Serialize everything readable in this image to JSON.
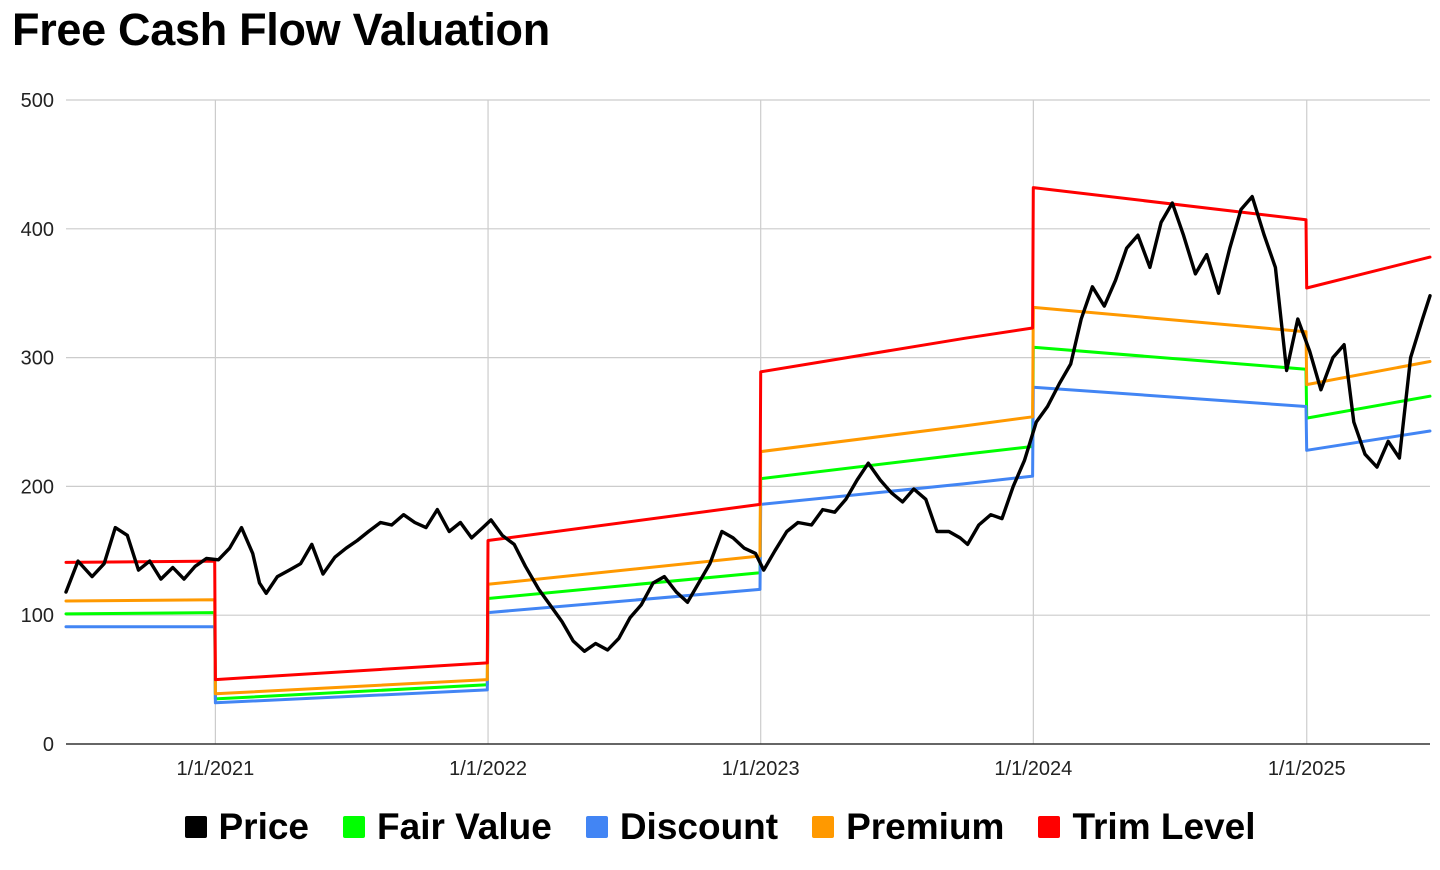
{
  "chart_data": {
    "type": "line",
    "title": "Free Cash Flow Valuation",
    "xlabel": "",
    "ylabel": "",
    "ylim": [
      0,
      500
    ],
    "xlim": [
      "2020-06-15",
      "2025-06-15"
    ],
    "yticks": [
      "0",
      "100",
      "200",
      "300",
      "400",
      "500"
    ],
    "xticks": [
      {
        "date": "2021-01-01",
        "label": "1/1/2021"
      },
      {
        "date": "2022-01-01",
        "label": "1/1/2022"
      },
      {
        "date": "2023-01-01",
        "label": "1/1/2023"
      },
      {
        "date": "2024-01-01",
        "label": "1/1/2024"
      },
      {
        "date": "2025-01-01",
        "label": "1/1/2025"
      }
    ],
    "grid": true,
    "legend": "bottom",
    "series": [
      {
        "name": "Price",
        "color": "#000000",
        "points": [
          [
            "2020-06-15",
            118
          ],
          [
            "2020-07-01",
            142
          ],
          [
            "2020-07-20",
            130
          ],
          [
            "2020-08-05",
            140
          ],
          [
            "2020-08-20",
            168
          ],
          [
            "2020-09-05",
            162
          ],
          [
            "2020-09-20",
            135
          ],
          [
            "2020-10-05",
            142
          ],
          [
            "2020-10-20",
            128
          ],
          [
            "2020-11-05",
            137
          ],
          [
            "2020-11-20",
            128
          ],
          [
            "2020-12-05",
            138
          ],
          [
            "2020-12-20",
            144
          ],
          [
            "2021-01-05",
            143
          ],
          [
            "2021-01-20",
            152
          ],
          [
            "2021-02-05",
            168
          ],
          [
            "2021-02-20",
            148
          ],
          [
            "2021-03-01",
            125
          ],
          [
            "2021-03-10",
            117
          ],
          [
            "2021-03-25",
            130
          ],
          [
            "2021-04-10",
            135
          ],
          [
            "2021-04-25",
            140
          ],
          [
            "2021-05-10",
            155
          ],
          [
            "2021-05-25",
            132
          ],
          [
            "2021-06-10",
            145
          ],
          [
            "2021-06-25",
            152
          ],
          [
            "2021-07-10",
            158
          ],
          [
            "2021-07-25",
            165
          ],
          [
            "2021-08-10",
            172
          ],
          [
            "2021-08-25",
            170
          ],
          [
            "2021-09-10",
            178
          ],
          [
            "2021-09-25",
            172
          ],
          [
            "2021-10-10",
            168
          ],
          [
            "2021-10-25",
            182
          ],
          [
            "2021-11-10",
            165
          ],
          [
            "2021-11-25",
            172
          ],
          [
            "2021-12-10",
            160
          ],
          [
            "2021-12-25",
            168
          ],
          [
            "2022-01-05",
            174
          ],
          [
            "2022-01-20",
            162
          ],
          [
            "2022-02-05",
            155
          ],
          [
            "2022-02-20",
            138
          ],
          [
            "2022-03-10",
            120
          ],
          [
            "2022-03-25",
            108
          ],
          [
            "2022-04-10",
            95
          ],
          [
            "2022-04-25",
            80
          ],
          [
            "2022-05-10",
            72
          ],
          [
            "2022-05-25",
            78
          ],
          [
            "2022-06-10",
            73
          ],
          [
            "2022-06-25",
            82
          ],
          [
            "2022-07-10",
            98
          ],
          [
            "2022-07-25",
            108
          ],
          [
            "2022-08-10",
            125
          ],
          [
            "2022-08-25",
            130
          ],
          [
            "2022-09-10",
            118
          ],
          [
            "2022-09-25",
            110
          ],
          [
            "2022-10-10",
            125
          ],
          [
            "2022-10-25",
            140
          ],
          [
            "2022-11-10",
            165
          ],
          [
            "2022-11-25",
            160
          ],
          [
            "2022-12-10",
            152
          ],
          [
            "2022-12-25",
            148
          ],
          [
            "2023-01-05",
            135
          ],
          [
            "2023-01-20",
            150
          ],
          [
            "2023-02-05",
            165
          ],
          [
            "2023-02-20",
            172
          ],
          [
            "2023-03-10",
            170
          ],
          [
            "2023-03-25",
            182
          ],
          [
            "2023-04-10",
            180
          ],
          [
            "2023-04-25",
            190
          ],
          [
            "2023-05-10",
            205
          ],
          [
            "2023-05-25",
            218
          ],
          [
            "2023-06-10",
            205
          ],
          [
            "2023-06-25",
            195
          ],
          [
            "2023-07-10",
            188
          ],
          [
            "2023-07-25",
            198
          ],
          [
            "2023-08-10",
            190
          ],
          [
            "2023-08-25",
            165
          ],
          [
            "2023-09-10",
            165
          ],
          [
            "2023-09-25",
            160
          ],
          [
            "2023-10-05",
            155
          ],
          [
            "2023-10-20",
            170
          ],
          [
            "2023-11-05",
            178
          ],
          [
            "2023-11-20",
            175
          ],
          [
            "2023-12-05",
            200
          ],
          [
            "2023-12-20",
            220
          ],
          [
            "2024-01-05",
            250
          ],
          [
            "2024-01-20",
            262
          ],
          [
            "2024-02-05",
            280
          ],
          [
            "2024-02-20",
            295
          ],
          [
            "2024-03-05",
            330
          ],
          [
            "2024-03-20",
            355
          ],
          [
            "2024-04-05",
            340
          ],
          [
            "2024-04-20",
            360
          ],
          [
            "2024-05-05",
            385
          ],
          [
            "2024-05-20",
            395
          ],
          [
            "2024-06-05",
            370
          ],
          [
            "2024-06-20",
            405
          ],
          [
            "2024-07-05",
            420
          ],
          [
            "2024-07-20",
            395
          ],
          [
            "2024-08-05",
            365
          ],
          [
            "2024-08-20",
            380
          ],
          [
            "2024-09-05",
            350
          ],
          [
            "2024-09-20",
            385
          ],
          [
            "2024-10-05",
            415
          ],
          [
            "2024-10-20",
            425
          ],
          [
            "2024-11-05",
            395
          ],
          [
            "2024-11-20",
            370
          ],
          [
            "2024-12-05",
            290
          ],
          [
            "2024-12-20",
            330
          ],
          [
            "2025-01-05",
            305
          ],
          [
            "2025-01-20",
            275
          ],
          [
            "2025-02-05",
            300
          ],
          [
            "2025-02-20",
            310
          ],
          [
            "2025-03-05",
            250
          ],
          [
            "2025-03-20",
            225
          ],
          [
            "2025-04-05",
            215
          ],
          [
            "2025-04-20",
            235
          ],
          [
            "2025-05-05",
            222
          ],
          [
            "2025-05-20",
            300
          ],
          [
            "2025-06-05",
            330
          ],
          [
            "2025-06-15",
            348
          ]
        ]
      },
      {
        "name": "Fair Value",
        "color": "#00ff00",
        "points": [
          [
            "2020-06-15",
            101
          ],
          [
            "2020-12-31",
            102
          ],
          [
            "2021-01-01",
            35
          ],
          [
            "2021-12-31",
            46
          ],
          [
            "2022-01-01",
            113
          ],
          [
            "2022-12-31",
            133
          ],
          [
            "2023-01-01",
            206
          ],
          [
            "2023-10-01",
            225
          ],
          [
            "2023-12-31",
            231
          ],
          [
            "2024-01-01",
            308
          ],
          [
            "2024-12-31",
            291
          ],
          [
            "2025-01-01",
            253
          ],
          [
            "2025-06-15",
            270
          ]
        ]
      },
      {
        "name": "Discount",
        "color": "#4285f4",
        "points": [
          [
            "2020-06-15",
            91
          ],
          [
            "2020-12-31",
            91
          ],
          [
            "2021-01-01",
            32
          ],
          [
            "2021-12-31",
            42
          ],
          [
            "2022-01-01",
            102
          ],
          [
            "2022-12-31",
            120
          ],
          [
            "2023-01-01",
            186
          ],
          [
            "2023-10-01",
            202
          ],
          [
            "2023-12-31",
            208
          ],
          [
            "2024-01-01",
            277
          ],
          [
            "2024-12-31",
            262
          ],
          [
            "2025-01-01",
            228
          ],
          [
            "2025-06-15",
            243
          ]
        ]
      },
      {
        "name": "Premium",
        "color": "#ff9900",
        "points": [
          [
            "2020-06-15",
            111
          ],
          [
            "2020-12-31",
            112
          ],
          [
            "2021-01-01",
            39
          ],
          [
            "2021-12-31",
            50
          ],
          [
            "2022-01-01",
            124
          ],
          [
            "2022-12-31",
            146
          ],
          [
            "2023-01-01",
            227
          ],
          [
            "2023-10-01",
            247
          ],
          [
            "2023-12-31",
            254
          ],
          [
            "2024-01-01",
            339
          ],
          [
            "2024-12-31",
            320
          ],
          [
            "2025-01-01",
            279
          ],
          [
            "2025-06-15",
            297
          ]
        ]
      },
      {
        "name": "Trim Level",
        "color": "#ff0000",
        "points": [
          [
            "2020-06-15",
            141
          ],
          [
            "2020-12-31",
            142
          ],
          [
            "2021-01-01",
            50
          ],
          [
            "2021-12-31",
            63
          ],
          [
            "2022-01-01",
            158
          ],
          [
            "2022-12-31",
            186
          ],
          [
            "2023-01-01",
            289
          ],
          [
            "2023-10-01",
            315
          ],
          [
            "2023-12-31",
            323
          ],
          [
            "2024-01-01",
            432
          ],
          [
            "2024-12-31",
            407
          ],
          [
            "2025-01-01",
            354
          ],
          [
            "2025-06-15",
            378
          ]
        ]
      }
    ]
  }
}
